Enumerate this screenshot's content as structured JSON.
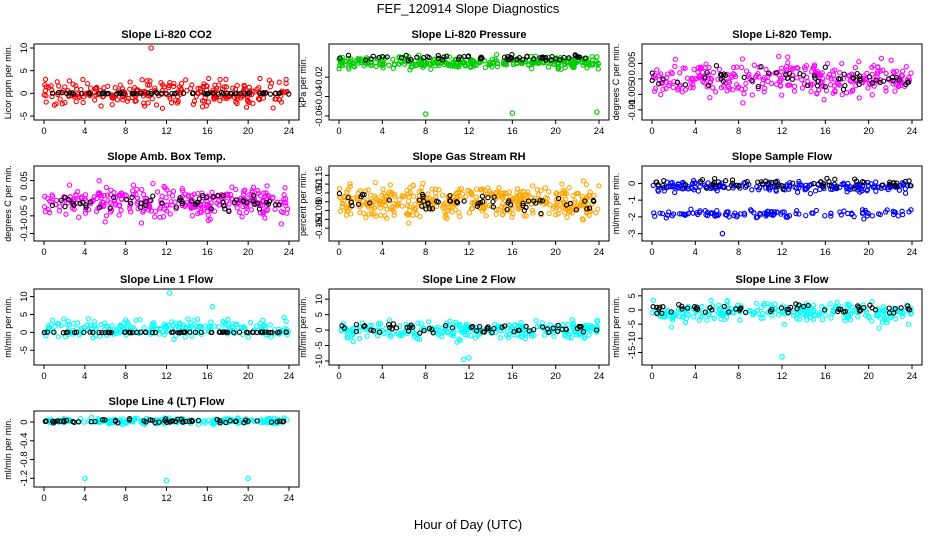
{
  "figure": {
    "suptitle": "FEF_120914  Slope Diagnostics",
    "xlabel": "Hour of Day (UTC)"
  },
  "chart_data": [
    {
      "type": "scatter",
      "title": "Slope Li-820 CO2",
      "ylabel": "Licor ppm per min.",
      "xlim": [
        0,
        24
      ],
      "ylim": [
        -5,
        10
      ],
      "xticks": [
        0,
        4,
        8,
        12,
        16,
        20,
        24
      ],
      "yticks": [
        -5,
        0,
        5,
        10
      ],
      "series": [
        {
          "name": "spread",
          "color": "#ff0000",
          "center": 0,
          "spread": 2.8,
          "count": 260
        },
        {
          "name": "mean",
          "color": "#000000",
          "center": 0,
          "spread": 0.15,
          "count": 70
        }
      ],
      "outliers": [
        {
          "x": 10.5,
          "y": 10
        }
      ]
    },
    {
      "type": "scatter",
      "title": "Slope Li-820 Pressure",
      "ylabel": "kPa per min.",
      "xlim": [
        0,
        24
      ],
      "ylim": [
        -0.06,
        0.01
      ],
      "xticks": [
        0,
        4,
        8,
        12,
        16,
        20,
        24
      ],
      "yticks": [
        -0.06,
        -0.04,
        -0.02
      ],
      "series": [
        {
          "name": "spread",
          "color": "#00cc00",
          "center": -0.005,
          "spread": 0.006,
          "count": 320
        },
        {
          "name": "mean",
          "color": "#000000",
          "center": 0.0,
          "spread": 0.003,
          "count": 60
        }
      ],
      "outliers": [
        {
          "x": 8,
          "y": -0.058
        },
        {
          "x": 16,
          "y": -0.057
        },
        {
          "x": 23.8,
          "y": -0.056
        }
      ]
    },
    {
      "type": "scatter",
      "title": "Slope Li-820 Temp.",
      "ylabel": "degrees C per min.",
      "xlim": [
        0,
        24
      ],
      "ylim": [
        -0.012,
        0.01
      ],
      "xticks": [
        0,
        4,
        8,
        12,
        16,
        20,
        24
      ],
      "yticks": [
        -0.01,
        -0.005,
        0,
        0.005
      ],
      "series": [
        {
          "name": "spread",
          "color": "#ff00ff",
          "center": 0.0,
          "spread": 0.0055,
          "count": 300
        },
        {
          "name": "mean",
          "color": "#000000",
          "center": 0.0,
          "spread": 0.0035,
          "count": 60
        }
      ],
      "outliers": []
    },
    {
      "type": "scatter",
      "title": "Slope Amb. Box Temp.",
      "ylabel": "degrees C per min.",
      "xlim": [
        0,
        24
      ],
      "ylim": [
        -0.11,
        0.08
      ],
      "xticks": [
        0,
        4,
        8,
        12,
        16,
        20,
        24
      ],
      "yticks": [
        -0.1,
        -0.05,
        0,
        0.05
      ],
      "series": [
        {
          "name": "spread",
          "color": "#ff00ff",
          "center": -0.01,
          "spread": 0.045,
          "count": 320
        },
        {
          "name": "mean",
          "color": "#000000",
          "center": -0.01,
          "spread": 0.025,
          "count": 60
        }
      ],
      "outliers": []
    },
    {
      "type": "scatter",
      "title": "Slope Gas Stream RH",
      "ylabel": "percent per min.",
      "xlim": [
        0,
        24
      ],
      "ylim": [
        -0.2,
        0.18
      ],
      "xticks": [
        0,
        4,
        8,
        12,
        16,
        20,
        24
      ],
      "yticks": [
        -0.15,
        -0.1,
        -0.05,
        0,
        0.05,
        0.1,
        0.15
      ],
      "series": [
        {
          "name": "spread",
          "color": "#ffa500",
          "center": 0.0,
          "spread": 0.09,
          "count": 420
        },
        {
          "name": "mean",
          "color": "#000000",
          "center": 0.0,
          "spread": 0.05,
          "count": 60
        }
      ],
      "outliers": []
    },
    {
      "type": "scatter",
      "title": "Slope Sample Flow",
      "ylabel": "ml/min per min.",
      "xlim": [
        0,
        24
      ],
      "ylim": [
        -3.2,
        0.8
      ],
      "xticks": [
        0,
        4,
        8,
        12,
        16,
        20,
        24
      ],
      "yticks": [
        -3,
        -2,
        -1,
        0
      ],
      "series": [
        {
          "name": "spread",
          "color": "#0000ff",
          "center": -0.2,
          "spread": 0.3,
          "count": 200
        },
        {
          "name": "lower",
          "color": "#0000ff",
          "center": -1.8,
          "spread": 0.25,
          "count": 120
        },
        {
          "name": "mean",
          "color": "#000000",
          "center": 0.0,
          "spread": 0.3,
          "count": 60
        }
      ],
      "outliers": [
        {
          "x": 6.5,
          "y": -3
        }
      ]
    },
    {
      "type": "scatter",
      "title": "Slope Line 1 Flow",
      "ylabel": "ml/min per min.",
      "xlim": [
        0,
        24
      ],
      "ylim": [
        -8,
        11
      ],
      "xticks": [
        0,
        4,
        8,
        12,
        16,
        20,
        24
      ],
      "yticks": [
        -5,
        0,
        5,
        10
      ],
      "series": [
        {
          "name": "spread",
          "color": "#00ffff",
          "center": 1,
          "spread": 2.5,
          "count": 220
        },
        {
          "name": "mean",
          "color": "#000000",
          "center": 0,
          "spread": 0.1,
          "count": 70
        }
      ],
      "outliers": [
        {
          "x": 12.3,
          "y": 11
        },
        {
          "x": 16.5,
          "y": 7.2
        }
      ]
    },
    {
      "type": "scatter",
      "title": "Slope Line 2 Flow",
      "ylabel": "ml/min per min.",
      "xlim": [
        0,
        24
      ],
      "ylim": [
        -10,
        12
      ],
      "xticks": [
        0,
        4,
        8,
        12,
        16,
        20,
        24
      ],
      "yticks": [
        -10,
        -5,
        0,
        5,
        10
      ],
      "series": [
        {
          "name": "spread",
          "color": "#00ffff",
          "center": 0,
          "spread": 2.8,
          "count": 260
        },
        {
          "name": "mean",
          "color": "#000000",
          "center": 0.5,
          "spread": 1.3,
          "count": 60
        }
      ],
      "outliers": [
        {
          "x": 11.5,
          "y": -9.5
        },
        {
          "x": 12,
          "y": -9
        }
      ]
    },
    {
      "type": "scatter",
      "title": "Slope Line 3 Flow",
      "ylabel": "ml/min per min.",
      "xlim": [
        0,
        24
      ],
      "ylim": [
        -18,
        6
      ],
      "xticks": [
        0,
        4,
        8,
        12,
        16,
        20,
        24
      ],
      "yticks": [
        -15,
        -10,
        -5,
        0,
        5
      ],
      "series": [
        {
          "name": "spread",
          "color": "#00ffff",
          "center": -1,
          "spread": 3.5,
          "count": 260
        },
        {
          "name": "mean",
          "color": "#000000",
          "center": 0.5,
          "spread": 1.5,
          "count": 60
        }
      ],
      "outliers": [
        {
          "x": 12,
          "y": -16.5
        }
      ]
    },
    {
      "type": "scatter",
      "title": "Slope Line 4 (LT) Flow",
      "ylabel": "ml/min per min.",
      "xlim": [
        0,
        24
      ],
      "ylim": [
        -1.3,
        0.15
      ],
      "xticks": [
        0,
        4,
        8,
        12,
        16,
        20,
        24
      ],
      "yticks": [
        -1.2,
        -0.8,
        -0.4,
        0.0
      ],
      "series": [
        {
          "name": "spread",
          "color": "#00ffff",
          "center": 0.02,
          "spread": 0.06,
          "count": 220
        },
        {
          "name": "mean",
          "color": "#000000",
          "center": 0.02,
          "spread": 0.04,
          "count": 60
        }
      ],
      "outliers": [
        {
          "x": 4,
          "y": -1.2
        },
        {
          "x": 12,
          "y": -1.25
        },
        {
          "x": 20,
          "y": -1.2
        }
      ]
    }
  ]
}
